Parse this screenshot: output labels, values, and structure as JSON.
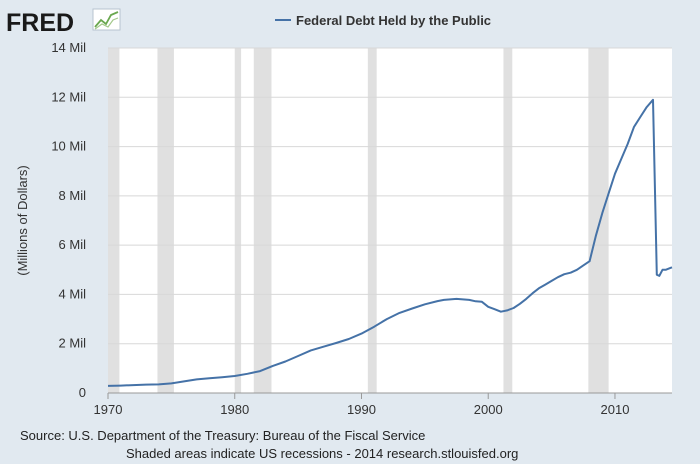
{
  "brand": {
    "logo_text": "FRED",
    "logo_icon": "trend-line-icon"
  },
  "colors": {
    "background": "#e1e9f0",
    "plot_background": "#ffffff",
    "line": "#4572a7",
    "recession_shade": "#e0e0e0",
    "grid": "#d8d8d8"
  },
  "chart_data": {
    "type": "line",
    "title": "Federal Debt Held by the Public",
    "legend_position": "top-center",
    "xlabel": "",
    "ylabel": "(Millions of Dollars)",
    "xlim": [
      1970,
      2014.5
    ],
    "ylim": [
      0,
      14
    ],
    "grid": true,
    "x_ticks": [
      1970,
      1980,
      1990,
      2000,
      2010
    ],
    "x_tick_labels": [
      "1970",
      "1980",
      "1990",
      "2000",
      "2010"
    ],
    "y_ticks": [
      0,
      2,
      4,
      6,
      8,
      10,
      12,
      14
    ],
    "y_tick_labels": [
      "0",
      "2 Mil",
      "4 Mil",
      "6 Mil",
      "8 Mil",
      "10 Mil",
      "12 Mil",
      "14 Mil"
    ],
    "recessions": [
      [
        1970.0,
        1970.9
      ],
      [
        1973.9,
        1975.2
      ],
      [
        1980.0,
        1980.5
      ],
      [
        1981.5,
        1982.9
      ],
      [
        1990.5,
        1991.2
      ],
      [
        2001.2,
        2001.9
      ],
      [
        2007.9,
        2009.5
      ]
    ],
    "series": [
      {
        "name": "Federal Debt Held by the Public",
        "x": [
          1970,
          1971,
          1972,
          1973,
          1974,
          1975,
          1976,
          1977,
          1978,
          1979,
          1980,
          1981,
          1982,
          1983,
          1984,
          1985,
          1986,
          1987,
          1988,
          1989,
          1990,
          1991,
          1992,
          1993,
          1994,
          1995,
          1996,
          1996.5,
          1997,
          1997.5,
          1998,
          1998.5,
          1999,
          1999.5,
          2000,
          2000.5,
          2001,
          2001.5,
          2002,
          2002.5,
          2003,
          2003.5,
          2004,
          2004.5,
          2005,
          2005.5,
          2006,
          2006.5,
          2007,
          2007.5,
          2008,
          2008.5,
          2009,
          2009.5,
          2010,
          2010.5,
          2011,
          2011.5,
          2012,
          2012.5,
          2013,
          2013.3,
          2013.5,
          2013.75,
          2014,
          2014.25,
          2014.5
        ],
        "values": [
          0.29,
          0.3,
          0.32,
          0.34,
          0.35,
          0.39,
          0.47,
          0.55,
          0.6,
          0.64,
          0.69,
          0.78,
          0.89,
          1.1,
          1.28,
          1.5,
          1.73,
          1.88,
          2.03,
          2.19,
          2.41,
          2.69,
          3.0,
          3.25,
          3.43,
          3.6,
          3.73,
          3.78,
          3.8,
          3.82,
          3.8,
          3.78,
          3.72,
          3.7,
          3.5,
          3.4,
          3.3,
          3.35,
          3.45,
          3.62,
          3.82,
          4.05,
          4.25,
          4.4,
          4.55,
          4.7,
          4.82,
          4.88,
          5.0,
          5.18,
          5.35,
          6.4,
          7.3,
          8.1,
          8.9,
          9.5,
          10.1,
          10.8,
          11.2,
          11.6,
          11.9,
          4.8,
          4.75,
          5.0,
          5.0,
          5.05,
          5.1
        ]
      }
    ]
  },
  "footer": {
    "source": "Source: U.S. Department of the Treasury: Bureau of the Fiscal Service",
    "note": "Shaded areas indicate US recessions - 2014 research.stlouisfed.org"
  }
}
